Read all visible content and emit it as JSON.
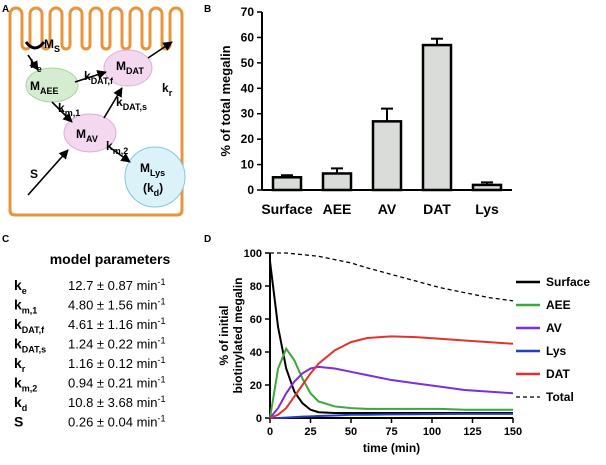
{
  "panels": [
    "A",
    "B",
    "C",
    "D"
  ],
  "diagram": {
    "labels": [
      {
        "text": "M",
        "sub": "S"
      },
      {
        "text": "k",
        "sub": "e"
      },
      {
        "text": "M",
        "sub": "AEE"
      },
      {
        "text": "M",
        "sub": "DAT"
      },
      {
        "text": "k",
        "sub": "r"
      },
      {
        "text": "k",
        "sub": "DAT,f"
      },
      {
        "text": "k",
        "sub": "DAT,s"
      },
      {
        "text": "k",
        "sub": "m,1"
      },
      {
        "text": "M",
        "sub": "AV"
      },
      {
        "text": "k",
        "sub": "m,2"
      },
      {
        "text": "S"
      },
      {
        "text": "M",
        "sub": "Lys"
      },
      {
        "text": "(k",
        "sub": "d",
        "after": ")"
      }
    ]
  },
  "parameters": {
    "title": "model parameters",
    "rows": [
      {
        "symbol": "k",
        "sub": "e",
        "value": "12.7 ± 0.87 min",
        "sup": "-1"
      },
      {
        "symbol": "k",
        "sub": "m,1",
        "value": "4.80 ± 1.56 min",
        "sup": "-1"
      },
      {
        "symbol": "k",
        "sub": "DAT,f",
        "value": "4.61 ± 1.16 min",
        "sup": "-1"
      },
      {
        "symbol": "k",
        "sub": "DAT,s",
        "value": "1.24 ± 0.22 min",
        "sup": "-1"
      },
      {
        "symbol": "k",
        "sub": "r",
        "value": "1.16 ± 0.12 min",
        "sup": "-1"
      },
      {
        "symbol": "k",
        "sub": "m,2",
        "value": "0.94 ± 0.21 min",
        "sup": "-1"
      },
      {
        "symbol": "k",
        "sub": "d",
        "value": "10.8 ± 3.68 min",
        "sup": "-1"
      },
      {
        "symbol": "S",
        "value": "0.26 ± 0.04 min",
        "sup": "-1"
      }
    ]
  },
  "chart_data": [
    {
      "type": "bar",
      "ylabel": "% of total megalin",
      "categories": [
        "Surface",
        "AEE",
        "AV",
        "DAT",
        "Lys"
      ],
      "values": [
        5,
        6.5,
        27,
        57,
        2
      ],
      "errors": [
        0.8,
        2,
        5,
        2.5,
        1
      ],
      "color": "#d9dcd9",
      "ylim": [
        0,
        70
      ],
      "yticks": [
        0,
        10,
        20,
        30,
        40,
        50,
        60,
        70
      ]
    },
    {
      "type": "line",
      "xlabel": "time (min)",
      "ylabel": [
        "% of initial",
        "biotinylated megalin"
      ],
      "x": [
        0,
        5,
        10,
        15,
        20,
        25,
        30,
        40,
        50,
        60,
        75,
        90,
        105,
        120,
        135,
        150
      ],
      "xlim": [
        0,
        150
      ],
      "xticks": [
        0,
        25,
        50,
        75,
        100,
        125,
        150
      ],
      "ylim": [
        0,
        100
      ],
      "yticks": [
        0,
        20,
        40,
        60,
        80,
        100
      ],
      "series": [
        {
          "name": "Surface",
          "color": "#000000",
          "values": [
            95,
            55,
            30,
            16,
            9,
            5,
            3.5,
            3,
            3,
            3,
            3,
            3,
            3,
            3,
            3,
            3
          ]
        },
        {
          "name": "AEE",
          "color": "#3aa935",
          "values": [
            0,
            30,
            42,
            35,
            24,
            15,
            10,
            7,
            6,
            5.5,
            5.5,
            5.5,
            5.5,
            5,
            5,
            5
          ]
        },
        {
          "name": "AV",
          "color": "#7b2fd6",
          "values": [
            0,
            6,
            15,
            22,
            27,
            30,
            31,
            30,
            28,
            26,
            23,
            21,
            19,
            17,
            16,
            15
          ]
        },
        {
          "name": "Lys",
          "color": "#1f3fc4",
          "values": [
            0,
            0,
            0.2,
            0.5,
            0.8,
            1,
            1.2,
            1.5,
            2,
            2,
            2.2,
            2.3,
            2.4,
            2.5,
            2.5,
            2.5
          ]
        },
        {
          "name": "DAT",
          "color": "#e0342b",
          "values": [
            0,
            2,
            6,
            13,
            20,
            27,
            33,
            41,
            46,
            48.5,
            49.5,
            49,
            48,
            47,
            46,
            45
          ]
        },
        {
          "name": "Total",
          "color": "#000000",
          "dash": true,
          "values": [
            100,
            100,
            100,
            99.5,
            99,
            98.5,
            98,
            96,
            94,
            91,
            87,
            83,
            79,
            76,
            73,
            71
          ]
        }
      ]
    }
  ]
}
